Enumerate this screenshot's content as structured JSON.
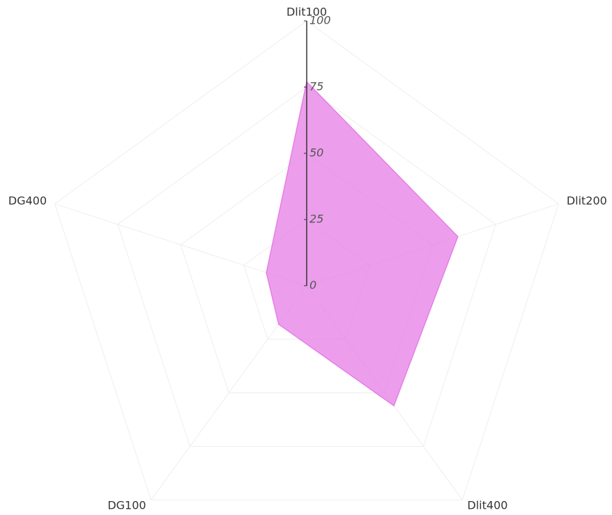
{
  "chart_data": {
    "type": "radar",
    "categories": [
      "Dlit100",
      "Dlit200",
      "Dlit400",
      "DG100",
      "DG400"
    ],
    "values": [
      77,
      60,
      56,
      18,
      16
    ],
    "color": "#e67ee6",
    "ylim": [
      0,
      100
    ],
    "yticks": [
      0,
      25,
      50,
      75,
      100
    ],
    "grid": true
  }
}
